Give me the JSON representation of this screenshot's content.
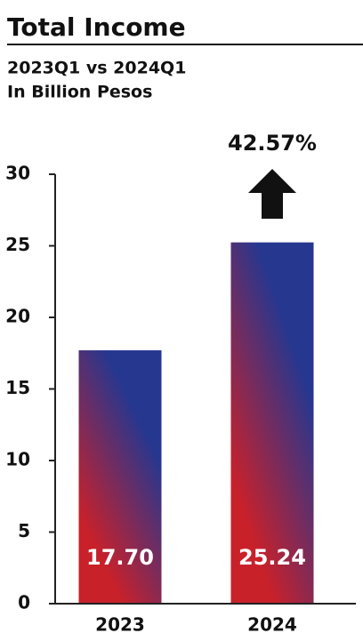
{
  "chart_data": {
    "type": "bar",
    "title": "Total Income",
    "subtitle": [
      "2023Q1 vs 2024Q1",
      "In Billion Pesos"
    ],
    "annotation": "42.57%",
    "categories": [
      "2023",
      "2024"
    ],
    "values": [
      17.7,
      25.24
    ],
    "value_labels": [
      "17.70",
      "25.24"
    ],
    "color_top": "#26378f",
    "color_bottom": "#c8212a",
    "ylim": [
      0,
      30
    ],
    "yticks": [
      0,
      5,
      10,
      15,
      20,
      25,
      30
    ]
  }
}
